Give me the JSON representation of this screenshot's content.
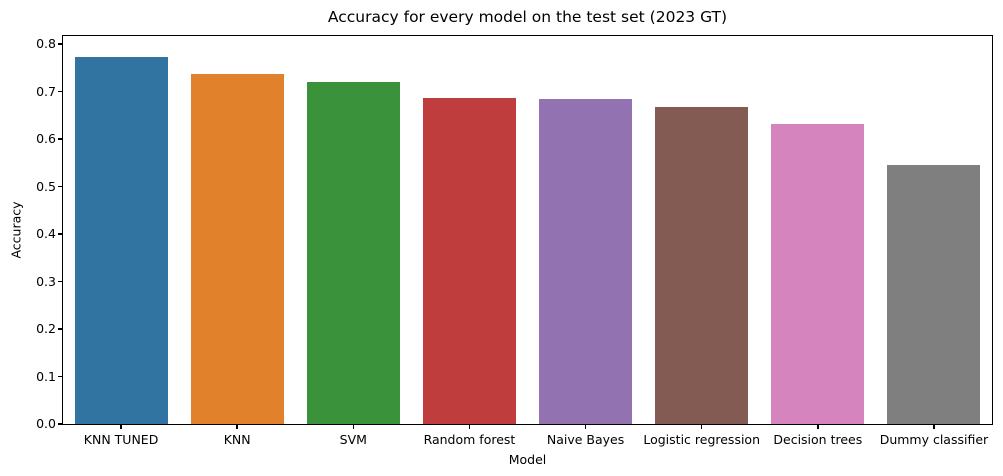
{
  "chart_data": {
    "type": "bar",
    "title": "Accuracy for every model on the test set (2023 GT)",
    "xlabel": "Model",
    "ylabel": "Accuracy",
    "categories": [
      "KNN TUNED",
      "KNN",
      "SVM",
      "Random forest",
      "Naive Bayes",
      "Logistic regression",
      "Decision trees",
      "Dummy classifier"
    ],
    "values": [
      0.773,
      0.737,
      0.721,
      0.686,
      0.685,
      0.668,
      0.632,
      0.546
    ],
    "bar_colors": [
      "#3274a1",
      "#e1812c",
      "#3a923a",
      "#c03d3e",
      "#9372b2",
      "#845b53",
      "#d684bd",
      "#7f7f7f"
    ],
    "ylim": [
      0.0,
      0.8
    ],
    "yticks": [
      "0.0",
      "0.1",
      "0.2",
      "0.3",
      "0.4",
      "0.5",
      "0.6",
      "0.7",
      "0.8"
    ],
    "ytick_step": 0.1,
    "grid": false,
    "legend_position": "none",
    "bar_width_fraction": 0.8,
    "spine_color": "#000000",
    "background_color": "#ffffff"
  }
}
